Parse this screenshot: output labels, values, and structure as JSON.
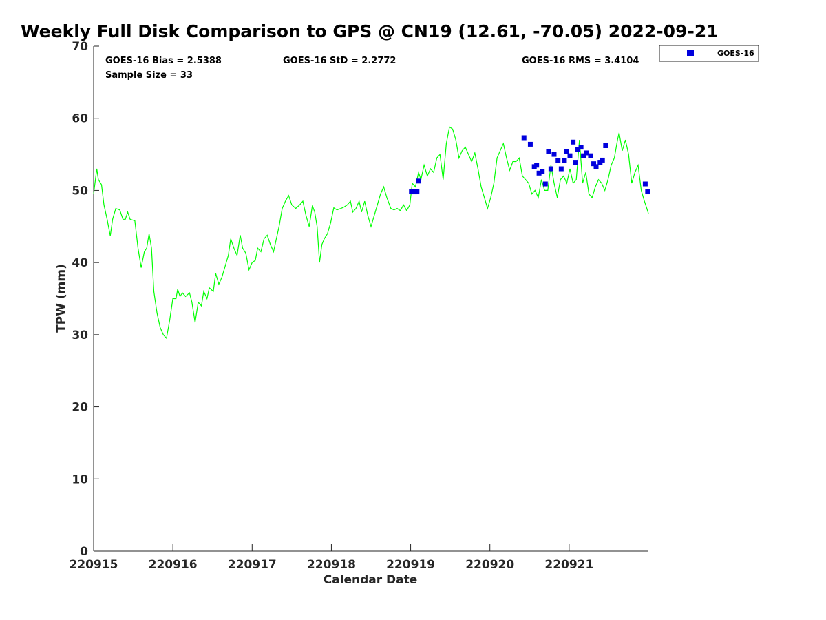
{
  "title": "Weekly Full Disk Comparison to GPS @ CN19 (12.61, -70.05) 2022-09-21",
  "stats": {
    "bias": "GOES-16 Bias = 2.5388",
    "std": "GOES-16 StD = 2.2772",
    "rms": "GOES-16 RMS = 3.4104",
    "sample": "Sample Size = 33"
  },
  "legend": {
    "entry": "GOES-16",
    "position": "top-right outside plot"
  },
  "colors": {
    "gps_line": "#00ff00",
    "goes_marker": "#0000dd",
    "axis": "#262626"
  },
  "chart_data": {
    "type": "line",
    "title": "Weekly Full Disk Comparison to GPS @ CN19 (12.61, -70.05) 2022-09-21",
    "xlabel": "Calendar Date",
    "ylabel": "TPW (mm)",
    "xlim": [
      0,
      7
    ],
    "ylim": [
      0,
      70
    ],
    "grid": false,
    "x_ticks": [
      {
        "value": 0,
        "label": "220915"
      },
      {
        "value": 1,
        "label": "220916"
      },
      {
        "value": 2,
        "label": "220917"
      },
      {
        "value": 3,
        "label": "220918"
      },
      {
        "value": 4,
        "label": "220919"
      },
      {
        "value": 5,
        "label": "220920"
      },
      {
        "value": 6,
        "label": "220921"
      }
    ],
    "y_ticks": [
      0,
      10,
      20,
      30,
      40,
      50,
      60,
      70
    ],
    "series": [
      {
        "style": "line",
        "color": "#00ff00",
        "points": [
          [
            0.0,
            49.5
          ],
          [
            0.04,
            53.0
          ],
          [
            0.06,
            51.5
          ],
          [
            0.1,
            50.8
          ],
          [
            0.13,
            48.0
          ],
          [
            0.17,
            46.0
          ],
          [
            0.21,
            43.7
          ],
          [
            0.24,
            46.0
          ],
          [
            0.28,
            47.5
          ],
          [
            0.33,
            47.3
          ],
          [
            0.37,
            46.0
          ],
          [
            0.4,
            46.0
          ],
          [
            0.43,
            47.0
          ],
          [
            0.46,
            46.0
          ],
          [
            0.52,
            45.8
          ],
          [
            0.56,
            42.0
          ],
          [
            0.6,
            39.3
          ],
          [
            0.64,
            41.5
          ],
          [
            0.67,
            42.0
          ],
          [
            0.7,
            44.0
          ],
          [
            0.73,
            42.0
          ],
          [
            0.76,
            36.0
          ],
          [
            0.8,
            33.0
          ],
          [
            0.84,
            31.0
          ],
          [
            0.88,
            30.0
          ],
          [
            0.92,
            29.5
          ],
          [
            0.96,
            32.0
          ],
          [
            1.0,
            35.0
          ],
          [
            1.04,
            35.0
          ],
          [
            1.06,
            36.3
          ],
          [
            1.09,
            35.3
          ],
          [
            1.12,
            35.8
          ],
          [
            1.16,
            35.3
          ],
          [
            1.21,
            35.8
          ],
          [
            1.24,
            34.5
          ],
          [
            1.28,
            31.7
          ],
          [
            1.32,
            34.5
          ],
          [
            1.36,
            34.0
          ],
          [
            1.39,
            36.0
          ],
          [
            1.43,
            35.0
          ],
          [
            1.46,
            36.5
          ],
          [
            1.51,
            36.0
          ],
          [
            1.54,
            38.5
          ],
          [
            1.58,
            37.0
          ],
          [
            1.62,
            38.0
          ],
          [
            1.66,
            39.5
          ],
          [
            1.7,
            41.0
          ],
          [
            1.73,
            43.3
          ],
          [
            1.77,
            42.0
          ],
          [
            1.81,
            41.0
          ],
          [
            1.85,
            43.8
          ],
          [
            1.88,
            42.0
          ],
          [
            1.92,
            41.3
          ],
          [
            1.96,
            39.0
          ],
          [
            2.0,
            40.0
          ],
          [
            2.04,
            40.3
          ],
          [
            2.07,
            42.0
          ],
          [
            2.11,
            41.5
          ],
          [
            2.15,
            43.3
          ],
          [
            2.19,
            43.8
          ],
          [
            2.23,
            42.5
          ],
          [
            2.27,
            41.5
          ],
          [
            2.3,
            43.0
          ],
          [
            2.34,
            45.0
          ],
          [
            2.38,
            47.5
          ],
          [
            2.42,
            48.5
          ],
          [
            2.46,
            49.3
          ],
          [
            2.5,
            48.0
          ],
          [
            2.55,
            47.5
          ],
          [
            2.6,
            48.0
          ],
          [
            2.64,
            48.5
          ],
          [
            2.68,
            46.5
          ],
          [
            2.72,
            45.0
          ],
          [
            2.76,
            47.9
          ],
          [
            2.79,
            47.0
          ],
          [
            2.82,
            45.0
          ],
          [
            2.85,
            40.0
          ],
          [
            2.88,
            42.5
          ],
          [
            2.91,
            43.3
          ],
          [
            2.95,
            44.0
          ],
          [
            2.99,
            45.5
          ],
          [
            3.03,
            47.6
          ],
          [
            3.07,
            47.3
          ],
          [
            3.12,
            47.5
          ],
          [
            3.16,
            47.7
          ],
          [
            3.2,
            48.0
          ],
          [
            3.24,
            48.5
          ],
          [
            3.27,
            47.0
          ],
          [
            3.31,
            47.5
          ],
          [
            3.35,
            48.5
          ],
          [
            3.38,
            47.0
          ],
          [
            3.42,
            48.5
          ],
          [
            3.46,
            46.5
          ],
          [
            3.5,
            45.0
          ],
          [
            3.54,
            46.5
          ],
          [
            3.58,
            48.0
          ],
          [
            3.62,
            49.5
          ],
          [
            3.66,
            50.5
          ],
          [
            3.7,
            49.0
          ],
          [
            3.75,
            47.5
          ],
          [
            3.79,
            47.3
          ],
          [
            3.83,
            47.5
          ],
          [
            3.87,
            47.2
          ],
          [
            3.91,
            48.0
          ],
          [
            3.95,
            47.2
          ],
          [
            3.99,
            48.0
          ],
          [
            4.02,
            51.0
          ],
          [
            4.06,
            50.5
          ],
          [
            4.1,
            52.5
          ],
          [
            4.13,
            51.5
          ],
          [
            4.17,
            53.5
          ],
          [
            4.21,
            52.0
          ],
          [
            4.25,
            53.0
          ],
          [
            4.29,
            52.5
          ],
          [
            4.33,
            54.5
          ],
          [
            4.37,
            55.0
          ],
          [
            4.41,
            51.5
          ],
          [
            4.45,
            56.5
          ],
          [
            4.49,
            58.8
          ],
          [
            4.53,
            58.5
          ],
          [
            4.57,
            57.0
          ],
          [
            4.61,
            54.5
          ],
          [
            4.65,
            55.5
          ],
          [
            4.69,
            56.0
          ],
          [
            4.73,
            55.0
          ],
          [
            4.77,
            54.0
          ],
          [
            4.81,
            55.2
          ],
          [
            4.85,
            53.0
          ],
          [
            4.89,
            50.5
          ],
          [
            4.93,
            49.0
          ],
          [
            4.97,
            47.5
          ],
          [
            5.01,
            49.0
          ],
          [
            5.05,
            51.0
          ],
          [
            5.09,
            54.5
          ],
          [
            5.13,
            55.5
          ],
          [
            5.17,
            56.5
          ],
          [
            5.21,
            54.5
          ],
          [
            5.25,
            52.8
          ],
          [
            5.29,
            54.0
          ],
          [
            5.33,
            54.0
          ],
          [
            5.37,
            54.5
          ],
          [
            5.41,
            52.0
          ],
          [
            5.45,
            51.5
          ],
          [
            5.49,
            51.0
          ],
          [
            5.53,
            49.5
          ],
          [
            5.57,
            50.0
          ],
          [
            5.61,
            49.0
          ],
          [
            5.65,
            51.5
          ],
          [
            5.69,
            50.0
          ],
          [
            5.73,
            50.0
          ],
          [
            5.77,
            53.5
          ],
          [
            5.81,
            51.0
          ],
          [
            5.85,
            49.0
          ],
          [
            5.89,
            51.5
          ],
          [
            5.93,
            52.0
          ],
          [
            5.97,
            51.0
          ],
          [
            6.01,
            53.0
          ],
          [
            6.05,
            51.0
          ],
          [
            6.09,
            51.5
          ],
          [
            6.13,
            57.0
          ],
          [
            6.17,
            51.0
          ],
          [
            6.21,
            52.5
          ],
          [
            6.25,
            49.5
          ],
          [
            6.29,
            49.0
          ],
          [
            6.33,
            50.5
          ],
          [
            6.37,
            51.5
          ],
          [
            6.41,
            51.0
          ],
          [
            6.45,
            50.0
          ],
          [
            6.49,
            51.5
          ],
          [
            6.53,
            53.5
          ],
          [
            6.57,
            54.5
          ],
          [
            6.61,
            57.0
          ],
          [
            6.63,
            58.0
          ],
          [
            6.67,
            55.5
          ],
          [
            6.71,
            57.0
          ],
          [
            6.75,
            55.0
          ],
          [
            6.79,
            51.0
          ],
          [
            6.83,
            52.5
          ],
          [
            6.87,
            53.5
          ],
          [
            6.91,
            50.0
          ],
          [
            6.95,
            48.5
          ],
          [
            6.98,
            47.5
          ],
          [
            7.0,
            46.8
          ]
        ]
      },
      {
        "name": "GOES-16",
        "style": "markers",
        "color": "#0000dd",
        "points": [
          [
            4.01,
            49.8
          ],
          [
            4.05,
            49.8
          ],
          [
            4.08,
            49.8
          ],
          [
            4.1,
            51.3
          ],
          [
            5.43,
            57.3
          ],
          [
            5.51,
            56.4
          ],
          [
            5.56,
            53.3
          ],
          [
            5.59,
            53.5
          ],
          [
            5.62,
            52.4
          ],
          [
            5.66,
            52.6
          ],
          [
            5.7,
            50.9
          ],
          [
            5.74,
            55.4
          ],
          [
            5.77,
            53.0
          ],
          [
            5.81,
            55.0
          ],
          [
            5.86,
            54.1
          ],
          [
            5.9,
            53.0
          ],
          [
            5.94,
            54.1
          ],
          [
            5.97,
            55.4
          ],
          [
            6.01,
            54.8
          ],
          [
            6.05,
            56.7
          ],
          [
            6.08,
            53.9
          ],
          [
            6.11,
            55.7
          ],
          [
            6.15,
            56.0
          ],
          [
            6.18,
            54.8
          ],
          [
            6.22,
            55.2
          ],
          [
            6.27,
            54.8
          ],
          [
            6.31,
            53.7
          ],
          [
            6.34,
            53.3
          ],
          [
            6.39,
            53.9
          ],
          [
            6.42,
            54.2
          ],
          [
            6.46,
            56.2
          ],
          [
            6.96,
            50.9
          ],
          [
            6.99,
            49.8
          ]
        ]
      }
    ]
  }
}
